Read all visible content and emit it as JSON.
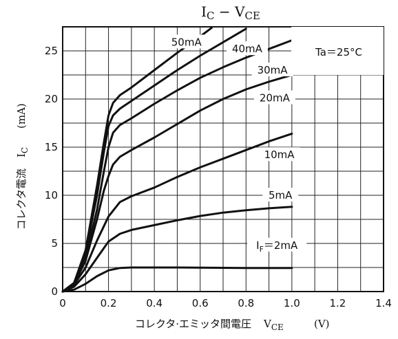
{
  "chart_data": {
    "type": "line",
    "title_main": "I",
    "title_sub1": "C",
    "title_sep": " − V",
    "title_sub2": "CE",
    "ylabel_text": "コレクタ電流",
    "ylabel_symbol": "I",
    "ylabel_symbol_sub": "C",
    "ylabel_unit": "(mA)",
    "xlabel_text": "コレクタ·エミッタ間電圧",
    "xlabel_symbol": "V",
    "xlabel_symbol_sub": "CE",
    "xlabel_unit": "(V)",
    "annotation": "Ta＝25°C",
    "x_ticks": [
      "0",
      "0.2",
      "0.4",
      "0.6",
      "0.8",
      "1.0",
      "1.2",
      "1.4"
    ],
    "y_ticks": [
      "0",
      "5",
      "10",
      "15",
      "20",
      "25"
    ],
    "xlim": [
      0,
      1.4
    ],
    "ylim": [
      0,
      27.5
    ],
    "x_minor_step": 0.1,
    "y_minor_step": 2.5,
    "series": [
      {
        "name": "I_F = 2mA",
        "label_main": "I",
        "label_sub": "F",
        "label_tail": "＝2mA",
        "points": [
          [
            0,
            0
          ],
          [
            0.05,
            0.2
          ],
          [
            0.1,
            0.8
          ],
          [
            0.15,
            1.6
          ],
          [
            0.2,
            2.2
          ],
          [
            0.25,
            2.45
          ],
          [
            0.3,
            2.5
          ],
          [
            0.5,
            2.5
          ],
          [
            0.8,
            2.45
          ],
          [
            1.0,
            2.45
          ]
        ]
      },
      {
        "name": "5mA",
        "label_main": "5mA",
        "points": [
          [
            0,
            0
          ],
          [
            0.05,
            0.5
          ],
          [
            0.1,
            1.8
          ],
          [
            0.15,
            3.5
          ],
          [
            0.2,
            5.2
          ],
          [
            0.25,
            6.0
          ],
          [
            0.3,
            6.4
          ],
          [
            0.4,
            6.9
          ],
          [
            0.5,
            7.4
          ],
          [
            0.6,
            7.85
          ],
          [
            0.7,
            8.2
          ],
          [
            0.8,
            8.45
          ],
          [
            0.9,
            8.65
          ],
          [
            1.0,
            8.8
          ]
        ]
      },
      {
        "name": "10mA",
        "label_main": "10mA",
        "points": [
          [
            0,
            0
          ],
          [
            0.05,
            0.7
          ],
          [
            0.1,
            2.5
          ],
          [
            0.15,
            5.3
          ],
          [
            0.2,
            7.8
          ],
          [
            0.25,
            9.3
          ],
          [
            0.3,
            9.9
          ],
          [
            0.4,
            10.8
          ],
          [
            0.5,
            11.9
          ],
          [
            0.6,
            12.9
          ],
          [
            0.7,
            13.8
          ],
          [
            0.8,
            14.7
          ],
          [
            0.9,
            15.6
          ],
          [
            1.0,
            16.4
          ]
        ]
      },
      {
        "name": "20mA",
        "label_main": "20mA",
        "points": [
          [
            0,
            0
          ],
          [
            0.05,
            0.8
          ],
          [
            0.1,
            3.2
          ],
          [
            0.15,
            7.5
          ],
          [
            0.18,
            10.5
          ],
          [
            0.2,
            12.0
          ],
          [
            0.22,
            13.2
          ],
          [
            0.25,
            14.0
          ],
          [
            0.3,
            14.7
          ],
          [
            0.4,
            16.0
          ],
          [
            0.5,
            17.4
          ],
          [
            0.6,
            18.8
          ],
          [
            0.7,
            20.0
          ],
          [
            0.8,
            21.0
          ],
          [
            0.9,
            21.8
          ],
          [
            1.0,
            22.5
          ]
        ]
      },
      {
        "name": "30mA",
        "label_main": "30mA",
        "points": [
          [
            0,
            0
          ],
          [
            0.05,
            0.8
          ],
          [
            0.1,
            3.5
          ],
          [
            0.15,
            8.5
          ],
          [
            0.18,
            12.5
          ],
          [
            0.2,
            15.0
          ],
          [
            0.22,
            16.5
          ],
          [
            0.25,
            17.3
          ],
          [
            0.3,
            18.0
          ],
          [
            0.4,
            19.5
          ],
          [
            0.5,
            20.9
          ],
          [
            0.6,
            22.2
          ],
          [
            0.7,
            23.3
          ],
          [
            0.8,
            24.3
          ],
          [
            0.9,
            25.2
          ],
          [
            1.0,
            26.1
          ]
        ]
      },
      {
        "name": "40mA",
        "label_main": "40mA",
        "points": [
          [
            0,
            0
          ],
          [
            0.05,
            0.9
          ],
          [
            0.1,
            4.0
          ],
          [
            0.15,
            10.0
          ],
          [
            0.18,
            14.5
          ],
          [
            0.2,
            17.2
          ],
          [
            0.22,
            18.3
          ],
          [
            0.25,
            19.0
          ],
          [
            0.3,
            19.8
          ],
          [
            0.4,
            21.4
          ],
          [
            0.5,
            23.0
          ],
          [
            0.6,
            24.5
          ],
          [
            0.7,
            25.9
          ],
          [
            0.8,
            27.3
          ]
        ]
      },
      {
        "name": "50mA",
        "label_main": "50mA",
        "points": [
          [
            0,
            0
          ],
          [
            0.05,
            0.9
          ],
          [
            0.1,
            4.3
          ],
          [
            0.15,
            11.0
          ],
          [
            0.18,
            15.5
          ],
          [
            0.2,
            18.3
          ],
          [
            0.22,
            19.6
          ],
          [
            0.25,
            20.4
          ],
          [
            0.3,
            21.2
          ],
          [
            0.4,
            23.0
          ],
          [
            0.5,
            24.8
          ],
          [
            0.6,
            26.5
          ],
          [
            0.65,
            27.4
          ]
        ]
      }
    ]
  }
}
